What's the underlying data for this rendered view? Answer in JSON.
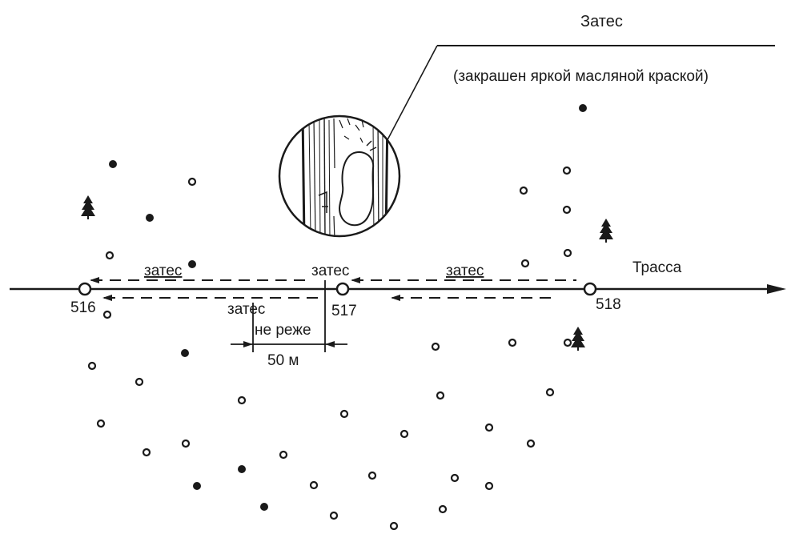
{
  "callout": {
    "title": "Затес",
    "subtitle": "(закрашен яркой масляной краской)"
  },
  "trace_label": "Трасса",
  "blaze_labels": [
    "затес",
    "затес",
    "затес",
    "затес"
  ],
  "stations": [
    "516",
    "517",
    "518"
  ],
  "spacing": {
    "text": "не реже",
    "distance": "50 м"
  },
  "legend_icons": [
    "tree-icon",
    "tree-icon",
    "tree-icon"
  ]
}
